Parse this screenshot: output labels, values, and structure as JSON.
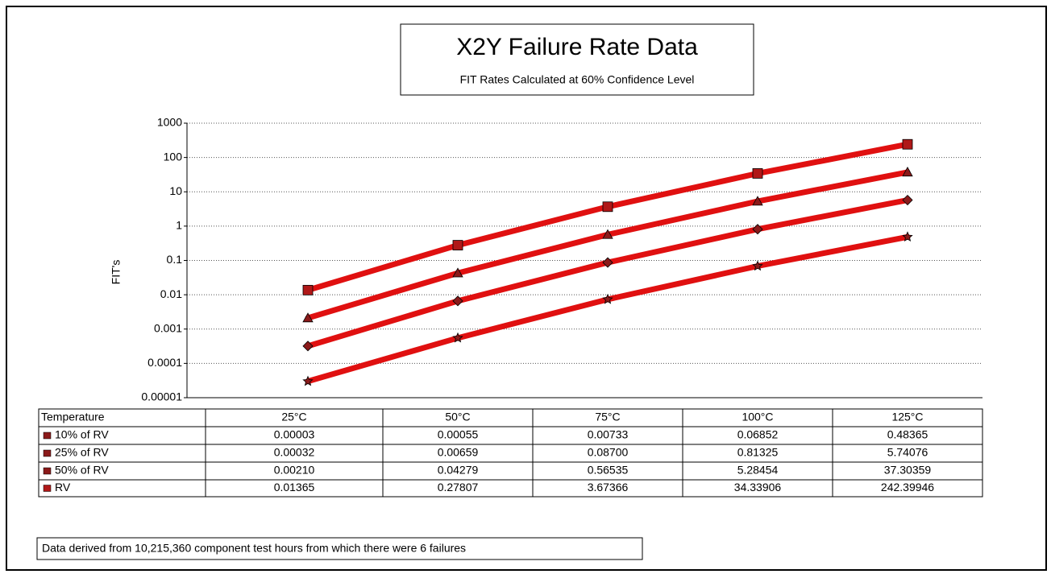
{
  "chart_data": {
    "type": "line",
    "title": "X2Y Failure Rate Data",
    "subtitle": "FIT Rates Calculated at 60% Confidence Level",
    "y_label": "FIT's",
    "log_scale": true,
    "grid": true,
    "table_header": "Temperature",
    "categories": [
      "25°C",
      "50°C",
      "75°C",
      "100°C",
      "125°C"
    ],
    "series": [
      {
        "name": "10% of RV",
        "color": "#e01010",
        "marker_color": "#8b1a1a",
        "marker": "star",
        "values": [
          3e-05,
          0.00055,
          0.00733,
          0.06852,
          0.48365
        ],
        "value_labels": [
          "0.00003",
          "0.00055",
          "0.00733",
          "0.06852",
          "0.48365"
        ]
      },
      {
        "name": "25% of RV",
        "color": "#e01010",
        "marker_color": "#8b1a1a",
        "marker": "diamond",
        "values": [
          0.00032,
          0.00659,
          0.087,
          0.81325,
          5.74076
        ],
        "value_labels": [
          "0.00032",
          "0.00659",
          "0.08700",
          "0.81325",
          "5.74076"
        ]
      },
      {
        "name": "50% of RV",
        "color": "#e01010",
        "marker_color": "#8b1a1a",
        "marker": "triangle",
        "values": [
          0.0021,
          0.04279,
          0.56535,
          5.28454,
          37.30359
        ],
        "value_labels": [
          "0.00210",
          "0.04279",
          "0.56535",
          "5.28454",
          "37.30359"
        ]
      },
      {
        "name": "RV",
        "color": "#e01010",
        "marker_color": "#b01818",
        "marker": "square",
        "values": [
          0.01365,
          0.27807,
          3.67366,
          34.33906,
          242.39946
        ],
        "value_labels": [
          "0.01365",
          "0.27807",
          "3.67366",
          "34.33906",
          "242.39946"
        ]
      }
    ],
    "ylim": [
      1e-05,
      1000
    ],
    "yticks": [
      1e-05,
      0.0001,
      0.001,
      0.01,
      0.1,
      1,
      10,
      100,
      1000
    ],
    "footnote": "Data derived from 10,215,360 component test hours from which there were 6 failures"
  }
}
